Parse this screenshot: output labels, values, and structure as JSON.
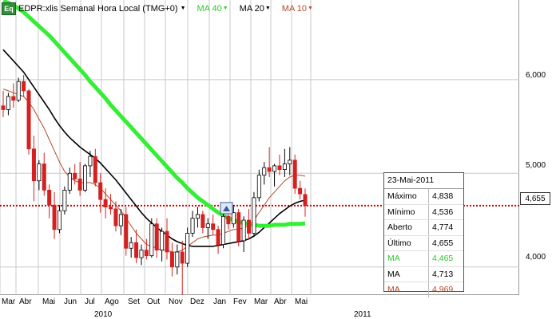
{
  "header": {
    "logo": "Eq",
    "title": "EDPR:xlis Semanal Hora Local (TMG+0)",
    "ma40_label": "MA 40",
    "ma20_label": "MA 20",
    "ma10_label": "MA 10"
  },
  "info_box": {
    "date": "23-Mai-2011",
    "rows": [
      {
        "k": "Máximo",
        "v": "4,838",
        "color": "#000000"
      },
      {
        "k": "Mínimo",
        "v": "4,536",
        "color": "#000000"
      },
      {
        "k": "Aberto",
        "v": "4,774",
        "color": "#000000"
      },
      {
        "k": "Último",
        "v": "4,655",
        "color": "#000000"
      },
      {
        "k": "MA",
        "v": "4,465",
        "color": "#2ec82e"
      },
      {
        "k": "MA",
        "v": "4,713",
        "color": "#000000"
      },
      {
        "k": "MA",
        "v": "4,969",
        "color": "#b34a2a"
      }
    ]
  },
  "colors": {
    "up": "#ffffff",
    "down": "#d42020",
    "ma40": "#33ee33",
    "ma20": "#000000",
    "ma10": "#b34a2a",
    "last_price_line": "#cc0000",
    "grid": "#c8c8c8"
  },
  "chart_data": {
    "type": "candlestick",
    "last_price": "4,655",
    "yticks": [
      "6,000",
      "5,000",
      "4,000"
    ],
    "ylim": [
      3.7,
      6.85
    ],
    "months": [
      "Mar",
      "Abr",
      "Mai",
      "Jun",
      "Jul",
      "Ago",
      "Set",
      "Out",
      "Nov",
      "Dez",
      "Jan",
      "Fev",
      "Mar",
      "Abr",
      "Mai"
    ],
    "years": [
      "2010",
      "2011"
    ],
    "candles": [
      [
        5.72,
        5.88,
        5.6,
        5.68
      ],
      [
        5.68,
        5.86,
        5.62,
        5.82
      ],
      [
        5.82,
        5.96,
        5.7,
        5.78
      ],
      [
        5.78,
        6.02,
        5.76,
        5.98
      ],
      [
        5.98,
        6.05,
        5.82,
        5.88
      ],
      [
        5.88,
        5.9,
        5.2,
        5.26
      ],
      [
        5.26,
        5.4,
        4.7,
        4.92
      ],
      [
        4.92,
        5.14,
        4.82,
        5.1
      ],
      [
        5.1,
        5.22,
        4.76,
        4.82
      ],
      [
        4.82,
        4.88,
        4.52,
        4.66
      ],
      [
        4.66,
        4.8,
        4.3,
        4.4
      ],
      [
        4.4,
        4.66,
        4.36,
        4.6
      ],
      [
        4.6,
        4.86,
        4.56,
        4.82
      ],
      [
        4.82,
        5.06,
        4.78,
        5.0
      ],
      [
        5.0,
        5.1,
        4.88,
        4.94
      ],
      [
        4.94,
        5.12,
        4.76,
        4.82
      ],
      [
        4.82,
        5.1,
        4.8,
        5.08
      ],
      [
        5.08,
        5.24,
        4.96,
        5.18
      ],
      [
        5.18,
        5.26,
        4.86,
        4.9
      ],
      [
        4.9,
        5.0,
        4.58,
        4.72
      ],
      [
        4.72,
        4.84,
        4.52,
        4.64
      ],
      [
        4.64,
        4.78,
        4.56,
        4.62
      ],
      [
        4.62,
        4.7,
        4.38,
        4.44
      ],
      [
        4.44,
        4.62,
        4.34,
        4.56
      ],
      [
        4.56,
        4.64,
        4.12,
        4.2
      ],
      [
        4.2,
        4.32,
        4.1,
        4.26
      ],
      [
        4.26,
        4.4,
        4.04,
        4.1
      ],
      [
        4.1,
        4.24,
        4.02,
        4.18
      ],
      [
        4.18,
        4.3,
        4.08,
        4.12
      ],
      [
        4.12,
        4.52,
        4.1,
        4.46
      ],
      [
        4.46,
        4.52,
        4.1,
        4.18
      ],
      [
        4.18,
        4.42,
        4.06,
        4.38
      ],
      [
        4.38,
        4.52,
        4.08,
        4.16
      ],
      [
        4.16,
        4.26,
        3.9,
        4.0
      ],
      [
        4.0,
        4.24,
        3.92,
        4.16
      ],
      [
        4.16,
        4.28,
        3.7,
        4.04
      ],
      [
        4.04,
        4.42,
        4.0,
        4.36
      ],
      [
        4.36,
        4.6,
        4.32,
        4.52
      ],
      [
        4.52,
        4.64,
        4.42,
        4.56
      ],
      [
        4.56,
        4.6,
        4.36,
        4.42
      ],
      [
        4.42,
        4.52,
        4.3,
        4.46
      ],
      [
        4.46,
        4.56,
        4.34,
        4.4
      ],
      [
        4.4,
        4.44,
        4.14,
        4.24
      ],
      [
        4.24,
        4.58,
        4.2,
        4.54
      ],
      [
        4.54,
        4.66,
        4.4,
        4.46
      ],
      [
        4.46,
        4.66,
        4.42,
        4.58
      ],
      [
        4.58,
        4.62,
        4.22,
        4.28
      ],
      [
        4.28,
        4.54,
        4.16,
        4.5
      ],
      [
        4.5,
        4.62,
        4.3,
        4.36
      ],
      [
        4.36,
        4.8,
        4.32,
        4.74
      ],
      [
        4.74,
        5.04,
        4.7,
        4.98
      ],
      [
        4.98,
        5.12,
        4.88,
        5.06
      ],
      [
        5.06,
        5.28,
        4.96,
        5.02
      ],
      [
        5.02,
        5.1,
        4.86,
        5.08
      ],
      [
        5.08,
        5.2,
        4.98,
        5.04
      ],
      [
        5.04,
        5.26,
        4.96,
        5.1
      ],
      [
        5.1,
        5.28,
        4.98,
        5.14
      ],
      [
        5.14,
        5.2,
        4.78,
        4.84
      ],
      [
        4.84,
        4.92,
        4.72,
        4.78
      ],
      [
        4.774,
        4.838,
        4.536,
        4.655
      ]
    ],
    "ma40": [
      6.84,
      6.82,
      6.79,
      6.76,
      6.72,
      6.67,
      6.62,
      6.57,
      6.52,
      6.47,
      6.41,
      6.35,
      6.29,
      6.23,
      6.17,
      6.11,
      6.05,
      5.98,
      5.92,
      5.86,
      5.8,
      5.73,
      5.67,
      5.61,
      5.55,
      5.49,
      5.43,
      5.37,
      5.31,
      5.25,
      5.19,
      5.13,
      5.07,
      5.01,
      4.95,
      4.9,
      4.84,
      4.79,
      4.74,
      4.7,
      4.66,
      4.62,
      4.58,
      4.55,
      4.52,
      4.5,
      4.48,
      4.47,
      4.46,
      4.45,
      4.44,
      4.44,
      4.44,
      4.45,
      4.45,
      4.45,
      4.46,
      4.46,
      4.46,
      4.465
    ],
    "ma20": [
      6.32,
      6.26,
      6.2,
      6.14,
      6.08,
      6.0,
      5.92,
      5.84,
      5.76,
      5.68,
      5.59,
      5.51,
      5.44,
      5.38,
      5.33,
      5.28,
      5.24,
      5.2,
      5.16,
      5.11,
      5.05,
      4.99,
      4.93,
      4.86,
      4.79,
      4.72,
      4.65,
      4.58,
      4.52,
      4.47,
      4.42,
      4.38,
      4.34,
      4.3,
      4.27,
      4.25,
      4.23,
      4.22,
      4.22,
      4.22,
      4.22,
      4.22,
      4.23,
      4.24,
      4.25,
      4.26,
      4.27,
      4.28,
      4.3,
      4.33,
      4.37,
      4.42,
      4.47,
      4.52,
      4.57,
      4.61,
      4.65,
      4.68,
      4.7,
      4.713
    ],
    "ma10": [
      5.9,
      5.88,
      5.86,
      5.84,
      5.82,
      5.76,
      5.68,
      5.58,
      5.48,
      5.36,
      5.24,
      5.12,
      5.02,
      4.96,
      4.92,
      4.9,
      4.9,
      4.9,
      4.88,
      4.84,
      4.78,
      4.72,
      4.66,
      4.6,
      4.52,
      4.44,
      4.36,
      4.3,
      4.24,
      4.22,
      4.2,
      4.18,
      4.18,
      4.16,
      4.16,
      4.18,
      4.22,
      4.26,
      4.3,
      4.32,
      4.33,
      4.34,
      4.34,
      4.36,
      4.38,
      4.4,
      4.4,
      4.42,
      4.44,
      4.5,
      4.58,
      4.66,
      4.74,
      4.8,
      4.86,
      4.92,
      4.96,
      4.98,
      4.98,
      4.969
    ]
  }
}
